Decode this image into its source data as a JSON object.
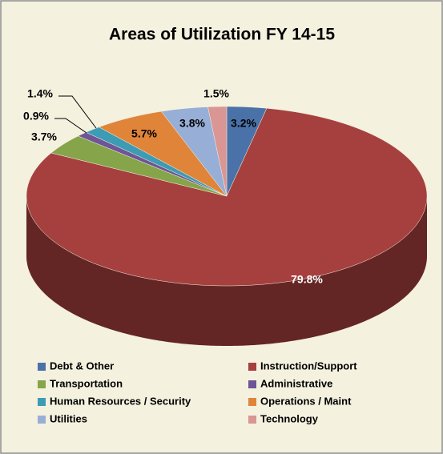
{
  "chart_data": {
    "type": "pie3d",
    "title": "Areas of Utilization FY 14-15",
    "categories": [
      "Debt & Other",
      "Instruction/Support",
      "Transportation",
      "Administrative",
      "Human Resources / Security",
      "Operations / Maint",
      "Utilities",
      "Technology"
    ],
    "values": [
      3.2,
      79.8,
      3.7,
      0.9,
      1.4,
      5.7,
      3.8,
      1.5
    ],
    "value_labels": [
      "3.2%",
      "79.8%",
      "3.7%",
      "0.9%",
      "1.4%",
      "5.7%",
      "3.8%",
      "1.5%"
    ],
    "colors": [
      "#4a72a8",
      "#a6403e",
      "#86a44a",
      "#6e5597",
      "#3e9bb4",
      "#e0843a",
      "#97aed6",
      "#d99694"
    ],
    "legend": "bottom"
  }
}
